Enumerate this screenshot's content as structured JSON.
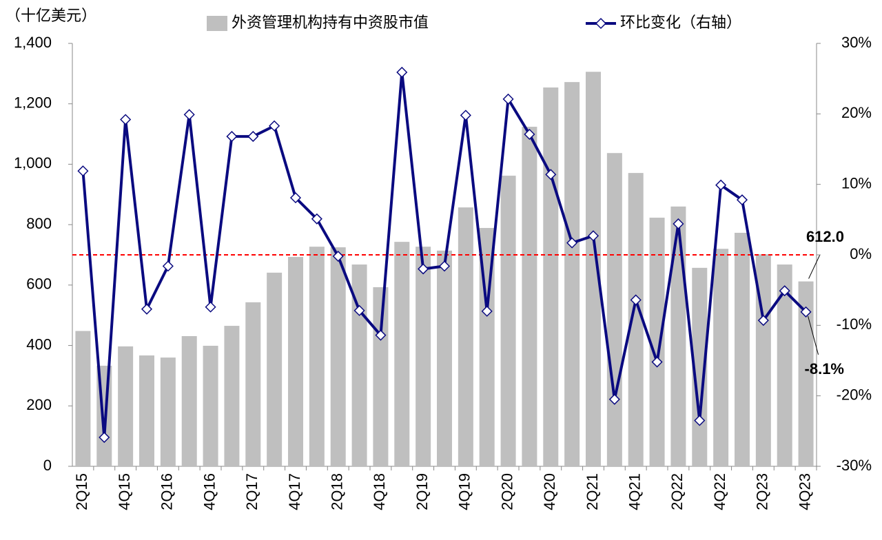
{
  "chart_data": {
    "type": "bar-line",
    "y_label": "（十亿美元）",
    "categories": [
      "2Q15",
      null,
      "4Q15",
      null,
      "2Q16",
      null,
      "4Q16",
      null,
      "2Q17",
      null,
      "4Q17",
      null,
      "2Q18",
      null,
      "4Q18",
      null,
      "2Q19",
      null,
      "4Q19",
      null,
      "2Q20",
      null,
      "4Q20",
      null,
      "2Q21",
      null,
      "4Q21",
      null,
      "2Q22",
      null,
      "4Q22",
      null,
      "2Q23",
      null,
      "4Q23"
    ],
    "series": [
      {
        "name": "外资管理机构持有中资股市值",
        "type": "bar",
        "color": "#bfbfbf",
        "values": [
          448,
          333,
          397,
          367,
          360,
          431,
          399,
          465,
          543,
          641,
          693,
          727,
          725,
          668,
          593,
          743,
          727,
          714,
          857,
          789,
          962,
          1124,
          1254,
          1272,
          1306,
          1037,
          971,
          823,
          860,
          657,
          720,
          773,
          702,
          668,
          612.0
        ],
        "value_labels": [
          null,
          null,
          null,
          null,
          null,
          null,
          null,
          null,
          null,
          null,
          null,
          null,
          null,
          null,
          null,
          null,
          null,
          null,
          null,
          null,
          null,
          null,
          null,
          null,
          null,
          null,
          null,
          null,
          null,
          null,
          null,
          null,
          null,
          null,
          "612.0"
        ]
      },
      {
        "name": "环比变化（右轴）",
        "type": "line",
        "axis": "y2",
        "color": "#0a0a80",
        "values": [
          11.9,
          -25.9,
          19.2,
          -7.7,
          -1.6,
          19.9,
          -7.4,
          16.8,
          16.8,
          18.3,
          8.1,
          5.1,
          -0.2,
          -7.9,
          -11.4,
          25.9,
          -2.0,
          -1.6,
          19.8,
          -8.0,
          22.1,
          17.1,
          11.4,
          1.7,
          2.7,
          -20.5,
          -6.4,
          -15.2,
          4.4,
          -23.5,
          9.9,
          7.8,
          -9.3,
          -5.1,
          -8.1
        ],
        "value_labels": [
          null,
          null,
          null,
          null,
          null,
          null,
          null,
          null,
          null,
          null,
          null,
          null,
          null,
          null,
          null,
          null,
          null,
          null,
          null,
          null,
          null,
          null,
          null,
          null,
          null,
          null,
          null,
          null,
          null,
          null,
          null,
          null,
          null,
          null,
          "-8.1%"
        ]
      }
    ],
    "ylim": [
      0,
      1400
    ],
    "yticks": [
      0,
      200,
      400,
      600,
      800,
      {
        "value": 1000,
        "label": "1,000"
      },
      {
        "value": 1200,
        "label": "1,200"
      },
      {
        "value": 1400,
        "label": "1,400"
      }
    ],
    "y2lim": [
      -30,
      30
    ],
    "y2ticks": [
      {
        "value": -30,
        "label": "-30%"
      },
      {
        "value": -20,
        "label": "-20%"
      },
      {
        "value": -10,
        "label": "-10%"
      },
      {
        "value": 0,
        "label": "0%"
      },
      {
        "value": 10,
        "label": "10%"
      },
      {
        "value": 20,
        "label": "20%"
      },
      {
        "value": 30,
        "label": "30%"
      }
    ],
    "y2_negative_color": "#e00000",
    "reference_line": {
      "axis": "y2",
      "value": 0,
      "color": "#ff0000"
    },
    "grid": false,
    "legend": "top"
  }
}
